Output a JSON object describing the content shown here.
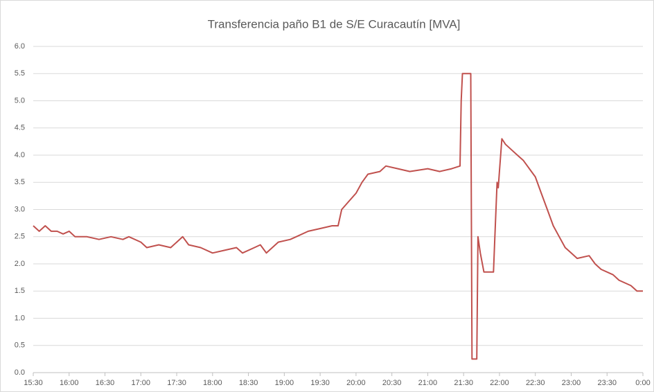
{
  "chart_data": {
    "type": "line",
    "title": "Transferencia paño B1 de S/E Curacautín [MVA]",
    "x": [
      "15:30",
      "15:35",
      "15:40",
      "15:45",
      "15:50",
      "15:55",
      "16:00",
      "16:05",
      "16:15",
      "16:25",
      "16:35",
      "16:45",
      "16:50",
      "17:00",
      "17:05",
      "17:15",
      "17:25",
      "17:35",
      "17:40",
      "17:50",
      "18:00",
      "18:10",
      "18:20",
      "18:25",
      "18:35",
      "18:40",
      "18:45",
      "18:55",
      "19:05",
      "19:10",
      "19:20",
      "19:30",
      "19:40",
      "19:45",
      "19:48",
      "19:52",
      "20:00",
      "20:05",
      "20:10",
      "20:20",
      "20:25",
      "20:35",
      "20:45",
      "21:00",
      "21:10",
      "21:20",
      "21:27",
      "21:28",
      "21:29",
      "21:36",
      "21:37",
      "21:41",
      "21:42",
      "21:44",
      "21:47",
      "21:55",
      "21:56",
      "21:58",
      "21:59",
      "22:00",
      "22:02",
      "22:05",
      "22:10",
      "22:15",
      "22:20",
      "22:25",
      "22:30",
      "22:35",
      "22:40",
      "22:45",
      "22:50",
      "22:55",
      "23:00",
      "23:05",
      "23:15",
      "23:20",
      "23:25",
      "23:35",
      "23:40",
      "23:45",
      "23:50",
      "23:55",
      "0:00"
    ],
    "series": [
      {
        "name": "Transferencia",
        "color": "#c0504d",
        "values": [
          2.7,
          2.6,
          2.7,
          2.6,
          2.6,
          2.55,
          2.6,
          2.5,
          2.5,
          2.45,
          2.5,
          2.45,
          2.5,
          2.4,
          2.3,
          2.35,
          2.3,
          2.5,
          2.35,
          2.3,
          2.2,
          2.25,
          2.3,
          2.2,
          2.3,
          2.35,
          2.2,
          2.4,
          2.45,
          2.5,
          2.6,
          2.65,
          2.7,
          2.7,
          3.0,
          3.1,
          3.3,
          3.5,
          3.65,
          3.7,
          3.8,
          3.75,
          3.7,
          3.75,
          3.7,
          3.75,
          3.8,
          5.0,
          5.5,
          5.5,
          0.25,
          0.25,
          2.5,
          2.2,
          1.85,
          1.85,
          2.4,
          3.5,
          3.4,
          3.7,
          4.3,
          4.2,
          4.1,
          4.0,
          3.9,
          3.75,
          3.6,
          3.3,
          3.0,
          2.7,
          2.5,
          2.3,
          2.2,
          2.1,
          2.15,
          2.0,
          1.9,
          1.8,
          1.7,
          1.65,
          1.6,
          1.5,
          1.5
        ]
      }
    ],
    "xticks": [
      "15:30",
      "16:00",
      "16:30",
      "17:00",
      "17:30",
      "18:00",
      "18:30",
      "19:00",
      "19:30",
      "20:00",
      "20:30",
      "21:00",
      "21:30",
      "22:00",
      "22:30",
      "23:00",
      "23:30",
      "0:00"
    ],
    "ylim": [
      0,
      6
    ],
    "yticks": [
      {
        "value": 0,
        "label": "0.0"
      },
      {
        "value": 0.5,
        "label": "0.5"
      },
      {
        "value": 1,
        "label": "1.0"
      },
      {
        "value": 1.5,
        "label": "1.5"
      },
      {
        "value": 2,
        "label": "2.0"
      },
      {
        "value": 2.5,
        "label": "2.5"
      },
      {
        "value": 3,
        "label": "3.0"
      },
      {
        "value": 3.5,
        "label": "3.5"
      },
      {
        "value": 4,
        "label": "4.0"
      },
      {
        "value": 4.5,
        "label": "4.5"
      },
      {
        "value": 5,
        "label": "5.0"
      },
      {
        "value": 5.5,
        "label": "5.5"
      },
      {
        "value": 6,
        "label": "6.0"
      }
    ],
    "grid": true
  }
}
